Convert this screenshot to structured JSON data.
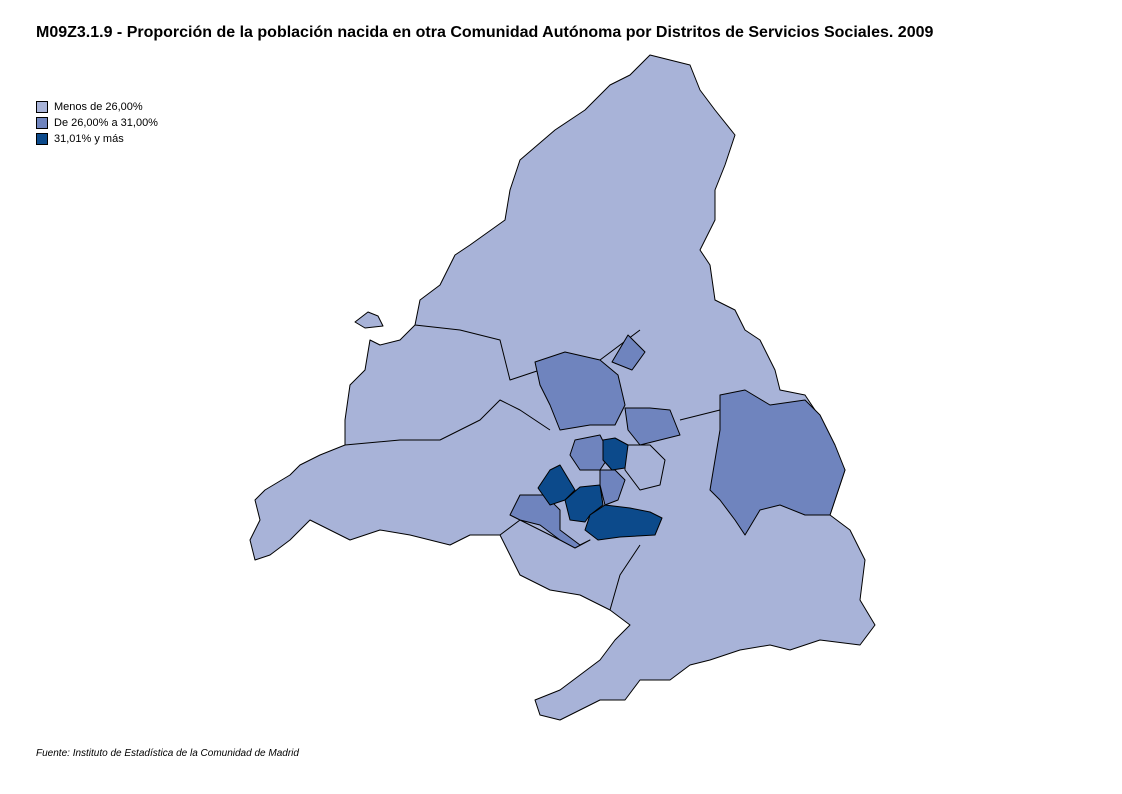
{
  "title": "M09Z3.1.9 - Proporción de la población nacida en otra Comunidad Autónoma por Distritos de Servicios Sociales. 2009",
  "legend": [
    {
      "label": "Menos de 26,00%",
      "color": "#a8b3d8"
    },
    {
      "label": "De 26,00% a 31,00%",
      "color": "#6f84be"
    },
    {
      "label": "31,01% y más",
      "color": "#0c4a8b"
    }
  ],
  "source": "Fuente: Instituto de Estadística de la Comunidad de Madrid"
}
